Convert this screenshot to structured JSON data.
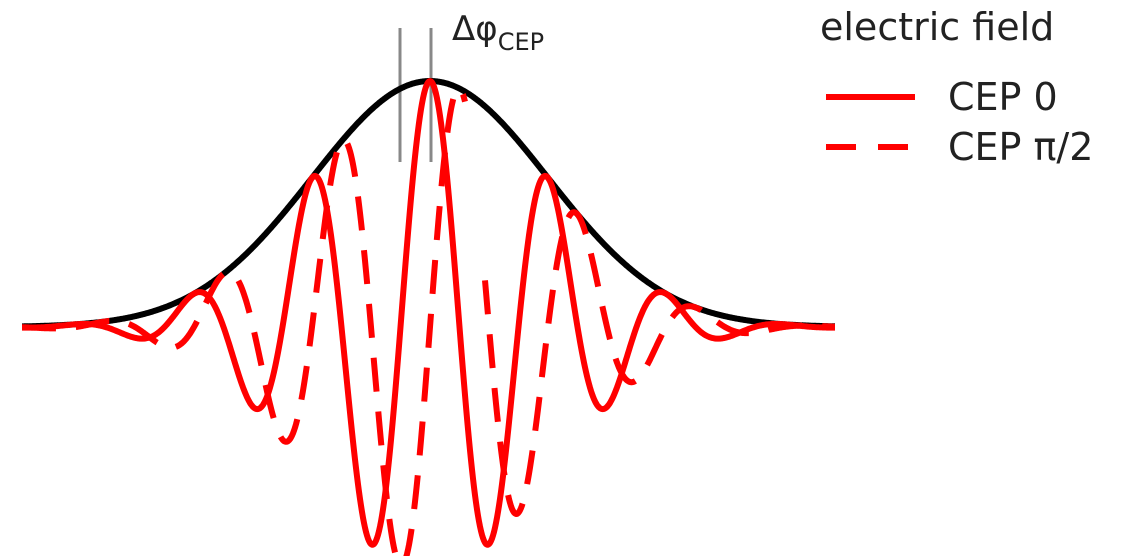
{
  "annotation": {
    "delta_symbol": "Δφ",
    "subscript": "CEP"
  },
  "legend": {
    "title": "electric field",
    "items": [
      {
        "label": "CEP 0",
        "style": "solid",
        "color": "#ff0000"
      },
      {
        "label": "CEP π/2",
        "style": "dashed",
        "color": "#ff0000"
      }
    ]
  },
  "colors": {
    "envelope": "#000000",
    "field": "#ff0000",
    "marker": "#888888"
  }
}
